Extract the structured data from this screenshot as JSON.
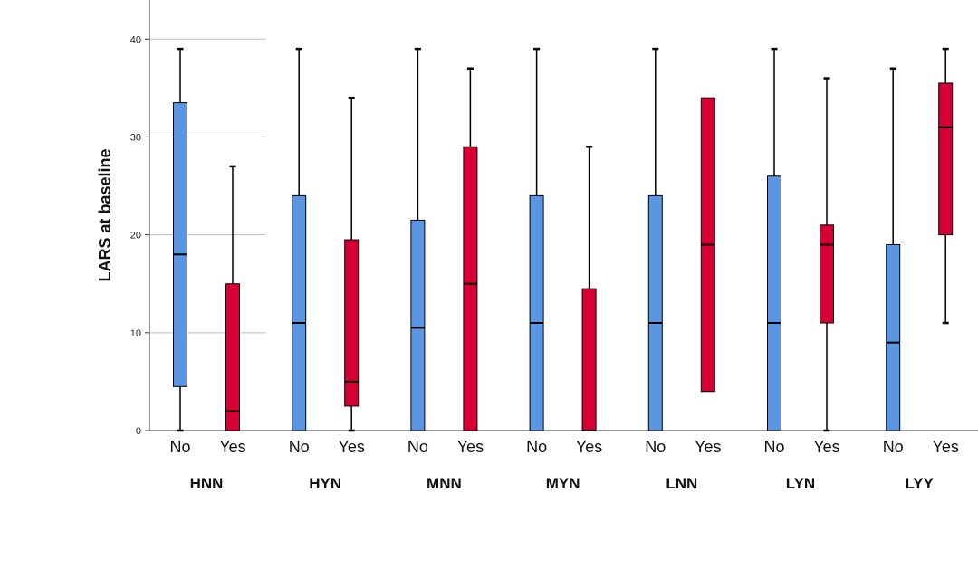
{
  "chart_data": {
    "type": "boxplot",
    "ylabel": "LARS at baseline",
    "xlabel": "",
    "ylim": [
      0,
      44
    ],
    "yticks": [
      0,
      10,
      20,
      30,
      40
    ],
    "grid": "horizontal",
    "categories": [
      "No",
      "Yes"
    ],
    "groups": [
      "HNN",
      "HYN",
      "MNN",
      "MYN",
      "LNN",
      "LYN",
      "LYY"
    ],
    "colors": {
      "No": "#5b96e2",
      "Yes": "#d60035"
    },
    "boxes": [
      {
        "group": "HNN",
        "category": "No",
        "min": 0,
        "q1": 4.5,
        "median": 18,
        "q3": 33.5,
        "max": 39
      },
      {
        "group": "HNN",
        "category": "Yes",
        "min": 0,
        "q1": 0,
        "median": 2,
        "q3": 15,
        "max": 27
      },
      {
        "group": "HYN",
        "category": "No",
        "min": 0,
        "q1": 0,
        "median": 11,
        "q3": 24,
        "max": 39
      },
      {
        "group": "HYN",
        "category": "Yes",
        "min": 0,
        "q1": 2.5,
        "median": 5,
        "q3": 19.5,
        "max": 34
      },
      {
        "group": "MNN",
        "category": "No",
        "min": 0,
        "q1": 0,
        "median": 10.5,
        "q3": 21.5,
        "max": 39
      },
      {
        "group": "MNN",
        "category": "Yes",
        "min": 0,
        "q1": 0,
        "median": 15,
        "q3": 29,
        "max": 37
      },
      {
        "group": "MYN",
        "category": "No",
        "min": 0,
        "q1": 0,
        "median": 11,
        "q3": 24,
        "max": 39
      },
      {
        "group": "MYN",
        "category": "Yes",
        "min": 0,
        "q1": 0,
        "median": 0,
        "q3": 14.5,
        "max": 29
      },
      {
        "group": "LNN",
        "category": "No",
        "min": 0,
        "q1": 0,
        "median": 11,
        "q3": 24,
        "max": 39
      },
      {
        "group": "LNN",
        "category": "Yes",
        "min": 4,
        "q1": 4,
        "median": 19,
        "q3": 34,
        "max": 34
      },
      {
        "group": "LYN",
        "category": "No",
        "min": 0,
        "q1": 0,
        "median": 11,
        "q3": 26,
        "max": 39
      },
      {
        "group": "LYN",
        "category": "Yes",
        "min": 0,
        "q1": 11,
        "median": 19,
        "q3": 21,
        "max": 36
      },
      {
        "group": "LYY",
        "category": "No",
        "min": 0,
        "q1": 0,
        "median": 9,
        "q3": 19,
        "max": 37
      },
      {
        "group": "LYY",
        "category": "Yes",
        "min": 11,
        "q1": 20,
        "median": 31,
        "q3": 35.5,
        "max": 39
      }
    ]
  }
}
